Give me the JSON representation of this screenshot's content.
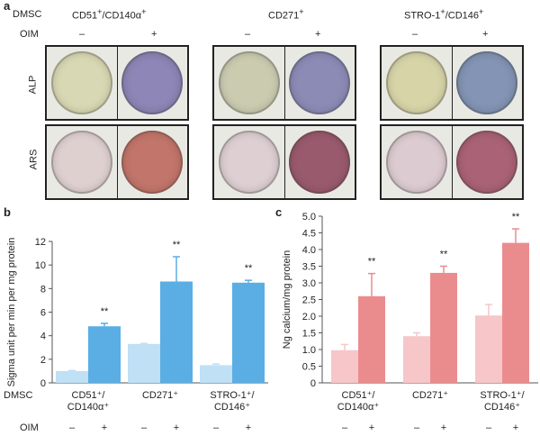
{
  "panel_a": {
    "letter": "a",
    "dmsc_label": "DMSC",
    "oim_label": "OIM",
    "groups": [
      {
        "name_html": "CD51<sup>+</sup>/CD140α<sup>+</sup>",
        "minus": "–",
        "plus": "+"
      },
      {
        "name_html": "CD271<sup>+</sup>",
        "minus": "–",
        "plus": "+"
      },
      {
        "name_html": "STRO-1<sup>+</sup>/CD146<sup>+</sup>",
        "minus": "–",
        "plus": "+"
      }
    ],
    "rows": [
      "ALP",
      "ARS"
    ],
    "well_colors": {
      "ALP": [
        [
          "#d9d8b4",
          "#8d86b6"
        ],
        [
          "#cbcbb0",
          "#8b8bb6"
        ],
        [
          "#d7d4a8",
          "#8394b4"
        ]
      ],
      "ARS": [
        [
          "#dfd0d0",
          "#c2756a"
        ],
        [
          "#ddcfd2",
          "#9a5a6e"
        ],
        [
          "#dccbd0",
          "#a96276"
        ]
      ]
    }
  },
  "panel_b": {
    "letter": "b",
    "dmsc_label": "DMSC",
    "oim_label": "OIM",
    "chart_data": {
      "type": "bar",
      "ylabel": "Sigma unit per min per mg protein",
      "ylim": [
        0,
        12
      ],
      "yticks": [
        "0",
        "2",
        "4",
        "6",
        "8",
        "10",
        "12"
      ],
      "categories": [
        "CD51⁺/ CD140α⁺",
        "CD271⁺",
        "STRO-1⁺/ CD146⁺"
      ],
      "category_lines": [
        [
          "CD51⁺/",
          "CD140α⁺"
        ],
        [
          "CD271⁺"
        ],
        [
          "STRO-1⁺/",
          "CD146⁺"
        ]
      ],
      "oim_signs": [
        "–",
        "+"
      ],
      "series": [
        {
          "name": "–",
          "color": "#bfe0f5",
          "values": [
            1.0,
            3.3,
            1.5
          ],
          "errors": [
            0.05,
            0.05,
            0.1
          ]
        },
        {
          "name": "+",
          "color": "#5aaee4",
          "values": [
            4.8,
            8.6,
            8.5
          ],
          "errors": [
            0.25,
            2.1,
            0.2
          ]
        }
      ],
      "significance": [
        "**",
        "**",
        "**"
      ]
    }
  },
  "panel_c": {
    "letter": "c",
    "chart_data": {
      "type": "bar",
      "ylabel": "Ng calcium/mg protein",
      "ylim": [
        0,
        5.0
      ],
      "yticks": [
        "0",
        "0.5",
        "1.0",
        "1.5",
        "2.0",
        "2.5",
        "3.0",
        "3.5",
        "4.0",
        "4.5",
        "5.0"
      ],
      "categories": [
        "CD51⁺/ CD140α⁺",
        "CD271⁺",
        "STRO-1⁺/ CD146⁺"
      ],
      "category_lines": [
        [
          "CD51⁺/",
          "CD140α⁺"
        ],
        [
          "CD271⁺"
        ],
        [
          "STRO-1⁺/",
          "CD146⁺"
        ]
      ],
      "oim_signs": [
        "–",
        "+"
      ],
      "series": [
        {
          "name": "–",
          "color": "#f6c6c8",
          "values": [
            0.98,
            1.4,
            2.02
          ],
          "errors": [
            0.17,
            0.1,
            0.33
          ]
        },
        {
          "name": "+",
          "color": "#ea8c8e",
          "values": [
            2.6,
            3.3,
            4.2
          ],
          "errors": [
            0.68,
            0.2,
            0.42
          ]
        }
      ],
      "significance": [
        "**",
        "**",
        "**"
      ]
    }
  }
}
